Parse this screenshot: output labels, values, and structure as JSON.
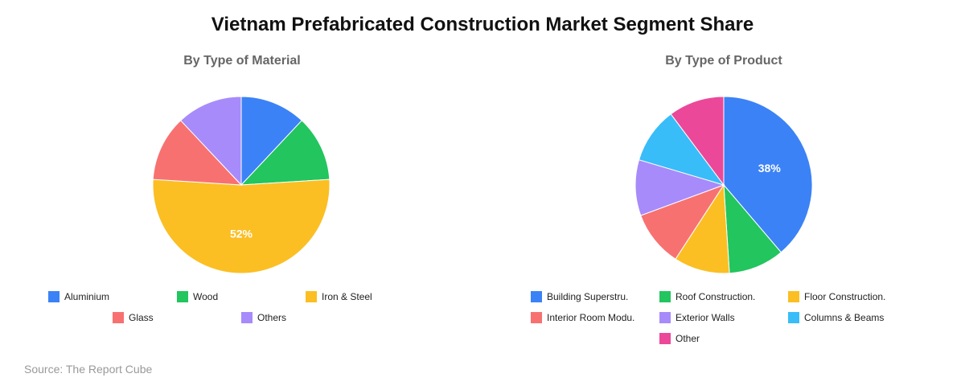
{
  "title": "Vietnam Prefabricated Construction Market Segment Share",
  "source": "Source: The Report Cube",
  "chart_data": [
    {
      "type": "pie",
      "title": "By Type of Material",
      "labels": [
        "Aluminium",
        "Wood",
        "Iron & Steel",
        "Glass",
        "Others"
      ],
      "values": [
        12,
        12,
        52,
        12,
        12
      ],
      "colors": [
        "#3b82f6",
        "#22c55e",
        "#fbbf24",
        "#f87171",
        "#a78bfa"
      ],
      "data_labels": [
        "",
        "",
        "52%",
        "",
        ""
      ],
      "legend_placement": "bottom"
    },
    {
      "type": "pie",
      "title": "By Type of Product",
      "labels": [
        "Building Superstru.",
        "Roof Construction.",
        "Floor Construction.",
        "Interior Room Modu.",
        "Exterior Walls",
        "Columns & Beams",
        "Other"
      ],
      "values": [
        38,
        10,
        10,
        10,
        10,
        10,
        10
      ],
      "colors": [
        "#3b82f6",
        "#22c55e",
        "#fbbf24",
        "#f87171",
        "#a78bfa",
        "#38bdf8",
        "#ec4899"
      ],
      "data_labels": [
        "38%",
        "",
        "",
        "",
        "",
        "",
        ""
      ],
      "legend_placement": "bottom"
    }
  ]
}
